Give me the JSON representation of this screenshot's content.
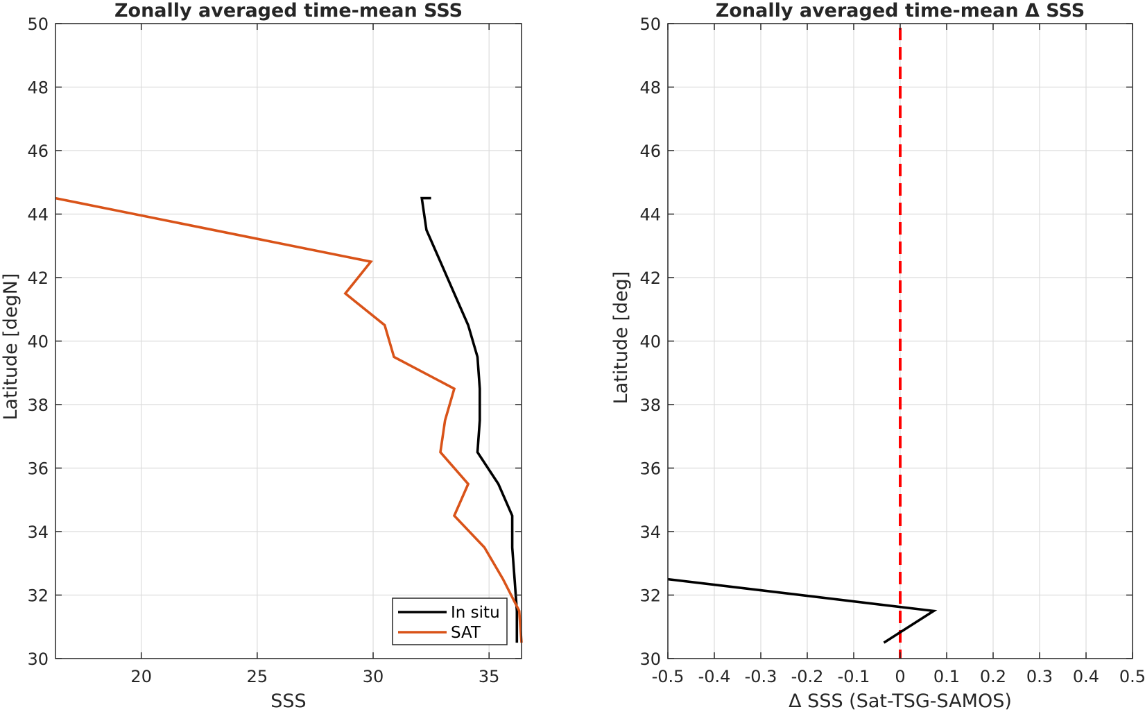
{
  "chart_data": [
    {
      "type": "line",
      "title": "Zonally averaged time-mean SSS",
      "xlabel": "SSS",
      "ylabel": "Latitude [degN]",
      "xlim": [
        16.3,
        36.4
      ],
      "ylim": [
        30,
        50
      ],
      "xticks": [
        20,
        25,
        30,
        35
      ],
      "yticks": [
        30,
        32,
        34,
        36,
        38,
        40,
        42,
        44,
        46,
        48,
        50
      ],
      "grid": true,
      "legend_position": "bottom-right",
      "series": [
        {
          "name": "In situ",
          "color": "#000000",
          "x": [
            36.2,
            36.2,
            36.1,
            36.0,
            36.0,
            35.4,
            34.5,
            34.6,
            34.6,
            34.5,
            34.1,
            33.5,
            32.9,
            32.3,
            32.1,
            32.5
          ],
          "y": [
            30.5,
            31.5,
            32.5,
            33.5,
            34.5,
            35.5,
            36.5,
            37.5,
            38.5,
            39.5,
            40.5,
            41.5,
            42.5,
            43.5,
            44.5,
            44.5
          ]
        },
        {
          "name": "SAT",
          "color": "#D95319",
          "x": [
            36.4,
            36.3,
            35.6,
            34.8,
            33.5,
            34.1,
            32.9,
            33.1,
            33.5,
            30.9,
            30.5,
            28.8,
            29.9,
            16.3
          ],
          "y": [
            30.5,
            31.5,
            32.5,
            33.5,
            34.5,
            35.5,
            36.5,
            37.5,
            38.5,
            39.5,
            40.5,
            41.5,
            42.5,
            44.5
          ]
        }
      ]
    },
    {
      "type": "line",
      "title": "Zonally averaged time-mean Δ SSS",
      "xlabel": "Δ SSS (Sat-TSG-SAMOS)",
      "ylabel": "Latitude [deg]",
      "xlim": [
        -0.5,
        0.5
      ],
      "ylim": [
        30,
        50
      ],
      "xticks": [
        -0.5,
        -0.4,
        -0.3,
        -0.2,
        -0.1,
        0,
        0.1,
        0.2,
        0.3,
        0.4,
        0.5
      ],
      "xtick_labels": [
        "-0.5",
        "-0.4",
        "-0.3",
        "-0.2",
        "-0.1",
        "0",
        "0.1",
        "0.2",
        "0.3",
        "0.4",
        "0.5"
      ],
      "yticks": [
        30,
        32,
        34,
        36,
        38,
        40,
        42,
        44,
        46,
        48,
        50
      ],
      "grid": true,
      "series": [
        {
          "color": "#000000",
          "x": [
            -0.035,
            0.072,
            -0.5
          ],
          "y": [
            30.5,
            31.5,
            32.5
          ]
        }
      ],
      "reference_line": {
        "x": 0,
        "color": "#FF0000",
        "style": "dashed"
      }
    }
  ]
}
